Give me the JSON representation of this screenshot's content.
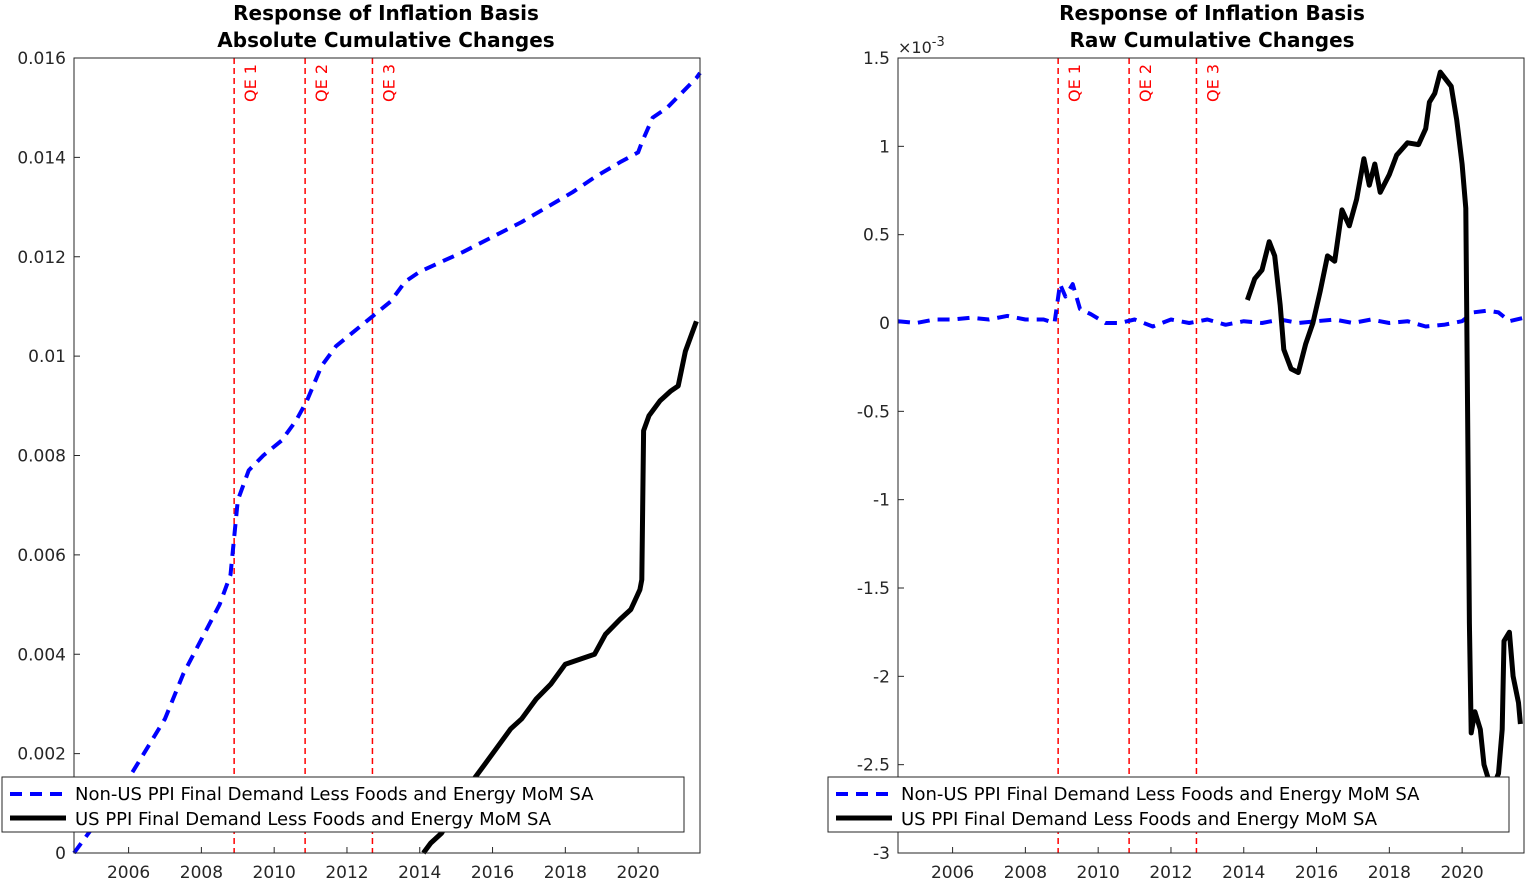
{
  "colors": {
    "non_us": "#0000ff",
    "us": "#000000",
    "qe_lines": "#ff0000",
    "axis": "#262626"
  },
  "chart_data": [
    {
      "type": "line",
      "title": [
        "Response of Inflation Basis",
        "Absolute Cumulative Changes"
      ],
      "xlabel": "",
      "ylabel": "",
      "xlim": [
        2004.5,
        2021.7
      ],
      "ylim": [
        0,
        0.016
      ],
      "x_ticks": [
        2006,
        2008,
        2010,
        2012,
        2014,
        2016,
        2018,
        2020
      ],
      "x_tick_labels": [
        "2006",
        "2008",
        "2010",
        "2012",
        "2014",
        "2016",
        "2018",
        "2020"
      ],
      "y_ticks": [
        0,
        0.002,
        0.004,
        0.006,
        0.008,
        0.01,
        0.012,
        0.014,
        0.016
      ],
      "y_tick_labels": [
        "0",
        "0.002",
        "0.004",
        "0.006",
        "0.008",
        "0.01",
        "0.012",
        "0.014",
        "0.016"
      ],
      "vlines": [
        {
          "x": 2008.9,
          "label": "QE 1"
        },
        {
          "x": 2010.85,
          "label": "QE 2"
        },
        {
          "x": 2012.7,
          "label": "QE 3"
        }
      ],
      "legend_position": "bottom-left",
      "series": [
        {
          "name": "Non-US PPI Final Demand Less Foods and Energy MoM SA",
          "style": "dashed",
          "points": [
            [
              2004.5,
              0.0
            ],
            [
              2005.0,
              0.0005
            ],
            [
              2005.5,
              0.0009
            ],
            [
              2006.0,
              0.0015
            ],
            [
              2006.5,
              0.0021
            ],
            [
              2007.0,
              0.0027
            ],
            [
              2007.5,
              0.0036
            ],
            [
              2008.0,
              0.0043
            ],
            [
              2008.5,
              0.005
            ],
            [
              2008.8,
              0.0056
            ],
            [
              2009.0,
              0.0071
            ],
            [
              2009.3,
              0.0077
            ],
            [
              2009.7,
              0.008
            ],
            [
              2010.2,
              0.0083
            ],
            [
              2010.6,
              0.0087
            ],
            [
              2010.9,
              0.0091
            ],
            [
              2011.3,
              0.0098
            ],
            [
              2011.7,
              0.0102
            ],
            [
              2012.2,
              0.0105
            ],
            [
              2012.7,
              0.0108
            ],
            [
              2013.2,
              0.0111
            ],
            [
              2013.6,
              0.0115
            ],
            [
              2014.0,
              0.0117
            ],
            [
              2014.6,
              0.0119
            ],
            [
              2015.2,
              0.0121
            ],
            [
              2016.0,
              0.0124
            ],
            [
              2016.8,
              0.0127
            ],
            [
              2017.5,
              0.013
            ],
            [
              2018.2,
              0.0133
            ],
            [
              2018.8,
              0.0136
            ],
            [
              2019.5,
              0.0139
            ],
            [
              2020.0,
              0.0141
            ],
            [
              2020.1,
              0.0143
            ],
            [
              2020.4,
              0.0148
            ],
            [
              2020.8,
              0.015
            ],
            [
              2021.2,
              0.0153
            ],
            [
              2021.6,
              0.0156
            ],
            [
              2021.7,
              0.0157
            ]
          ]
        },
        {
          "name": "US PPI Final Demand Less Foods and Energy MoM SA",
          "style": "solid",
          "points": [
            [
              2014.1,
              0.0
            ],
            [
              2014.3,
              0.0002
            ],
            [
              2014.6,
              0.0004
            ],
            [
              2015.0,
              0.0009
            ],
            [
              2015.4,
              0.0014
            ],
            [
              2015.8,
              0.0018
            ],
            [
              2016.1,
              0.0021
            ],
            [
              2016.5,
              0.0025
            ],
            [
              2016.8,
              0.0027
            ],
            [
              2017.2,
              0.0031
            ],
            [
              2017.6,
              0.0034
            ],
            [
              2018.0,
              0.0038
            ],
            [
              2018.4,
              0.0039
            ],
            [
              2018.8,
              0.004
            ],
            [
              2019.1,
              0.0044
            ],
            [
              2019.5,
              0.0047
            ],
            [
              2019.8,
              0.0049
            ],
            [
              2020.05,
              0.0053
            ],
            [
              2020.1,
              0.0055
            ],
            [
              2020.15,
              0.0085
            ],
            [
              2020.3,
              0.0088
            ],
            [
              2020.6,
              0.0091
            ],
            [
              2020.9,
              0.0093
            ],
            [
              2021.1,
              0.0094
            ],
            [
              2021.3,
              0.0101
            ],
            [
              2021.45,
              0.0104
            ],
            [
              2021.6,
              0.0107
            ]
          ]
        }
      ]
    },
    {
      "type": "line",
      "title": [
        "Response of Inflation Basis",
        "Raw Cumulative Changes"
      ],
      "xlabel": "",
      "ylabel": "",
      "y_exponent_label": "×10",
      "y_exponent_power": "-3",
      "xlim": [
        2004.5,
        2021.7
      ],
      "ylim": [
        -3,
        1.5
      ],
      "x_ticks": [
        2006,
        2008,
        2010,
        2012,
        2014,
        2016,
        2018,
        2020
      ],
      "x_tick_labels": [
        "2006",
        "2008",
        "2010",
        "2012",
        "2014",
        "2016",
        "2018",
        "2020"
      ],
      "y_ticks": [
        -3,
        -2.5,
        -2,
        -1.5,
        -1,
        -0.5,
        0,
        0.5,
        1,
        1.5
      ],
      "y_tick_labels": [
        "-3",
        "-2.5",
        "-2",
        "-1.5",
        "-1",
        "-0.5",
        "0",
        "0.5",
        "1",
        "1.5"
      ],
      "vlines": [
        {
          "x": 2008.9,
          "label": "QE 1"
        },
        {
          "x": 2010.85,
          "label": "QE 2"
        },
        {
          "x": 2012.7,
          "label": "QE 3"
        }
      ],
      "legend_position": "bottom-left",
      "series": [
        {
          "name": "Non-US PPI Final Demand Less Foods and Energy MoM SA",
          "style": "dashed",
          "points": [
            [
              2004.5,
              0.01
            ],
            [
              2005.0,
              0.0
            ],
            [
              2005.5,
              0.02
            ],
            [
              2006.0,
              0.02
            ],
            [
              2006.5,
              0.03
            ],
            [
              2007.0,
              0.02
            ],
            [
              2007.5,
              0.04
            ],
            [
              2008.0,
              0.02
            ],
            [
              2008.5,
              0.02
            ],
            [
              2008.8,
              0.0
            ],
            [
              2008.95,
              0.22
            ],
            [
              2009.1,
              0.15
            ],
            [
              2009.3,
              0.22
            ],
            [
              2009.5,
              0.08
            ],
            [
              2009.8,
              0.05
            ],
            [
              2010.2,
              0.0
            ],
            [
              2010.6,
              0.0
            ],
            [
              2011.0,
              0.02
            ],
            [
              2011.5,
              -0.02
            ],
            [
              2012.0,
              0.02
            ],
            [
              2012.5,
              0.0
            ],
            [
              2013.0,
              0.02
            ],
            [
              2013.5,
              -0.01
            ],
            [
              2014.0,
              0.01
            ],
            [
              2014.5,
              0.0
            ],
            [
              2015.0,
              0.02
            ],
            [
              2015.5,
              0.0
            ],
            [
              2016.0,
              0.01
            ],
            [
              2016.5,
              0.02
            ],
            [
              2017.0,
              0.0
            ],
            [
              2017.5,
              0.02
            ],
            [
              2018.0,
              0.0
            ],
            [
              2018.5,
              0.01
            ],
            [
              2019.0,
              -0.02
            ],
            [
              2019.5,
              -0.01
            ],
            [
              2020.0,
              0.01
            ],
            [
              2020.3,
              0.06
            ],
            [
              2020.7,
              0.07
            ],
            [
              2021.0,
              0.06
            ],
            [
              2021.3,
              0.01
            ],
            [
              2021.7,
              0.03
            ]
          ]
        },
        {
          "name": "US PPI Final Demand Less Foods and Energy MoM SA",
          "style": "solid",
          "points": [
            [
              2014.1,
              0.13
            ],
            [
              2014.3,
              0.25
            ],
            [
              2014.5,
              0.3
            ],
            [
              2014.7,
              0.46
            ],
            [
              2014.85,
              0.38
            ],
            [
              2015.0,
              0.1
            ],
            [
              2015.1,
              -0.15
            ],
            [
              2015.3,
              -0.26
            ],
            [
              2015.5,
              -0.28
            ],
            [
              2015.7,
              -0.12
            ],
            [
              2015.9,
              0.0
            ],
            [
              2016.1,
              0.18
            ],
            [
              2016.3,
              0.38
            ],
            [
              2016.5,
              0.35
            ],
            [
              2016.7,
              0.64
            ],
            [
              2016.9,
              0.55
            ],
            [
              2017.1,
              0.7
            ],
            [
              2017.3,
              0.93
            ],
            [
              2017.45,
              0.78
            ],
            [
              2017.6,
              0.9
            ],
            [
              2017.75,
              0.74
            ],
            [
              2018.0,
              0.84
            ],
            [
              2018.2,
              0.95
            ],
            [
              2018.5,
              1.02
            ],
            [
              2018.8,
              1.01
            ],
            [
              2019.0,
              1.1
            ],
            [
              2019.1,
              1.25
            ],
            [
              2019.25,
              1.3
            ],
            [
              2019.4,
              1.42
            ],
            [
              2019.55,
              1.38
            ],
            [
              2019.7,
              1.34
            ],
            [
              2019.85,
              1.15
            ],
            [
              2020.0,
              0.9
            ],
            [
              2020.1,
              0.65
            ],
            [
              2020.15,
              -0.5
            ],
            [
              2020.2,
              -1.7
            ],
            [
              2020.25,
              -2.32
            ],
            [
              2020.35,
              -2.2
            ],
            [
              2020.5,
              -2.3
            ],
            [
              2020.6,
              -2.5
            ],
            [
              2020.75,
              -2.6
            ],
            [
              2020.9,
              -2.6
            ],
            [
              2021.0,
              -2.55
            ],
            [
              2021.1,
              -2.3
            ],
            [
              2021.15,
              -1.8
            ],
            [
              2021.3,
              -1.75
            ],
            [
              2021.4,
              -2.0
            ],
            [
              2021.55,
              -2.15
            ],
            [
              2021.6,
              -2.27
            ]
          ]
        }
      ]
    }
  ]
}
